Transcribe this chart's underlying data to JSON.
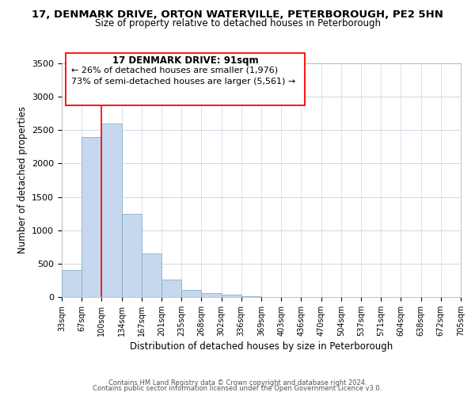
{
  "title": "17, DENMARK DRIVE, ORTON WATERVILLE, PETERBOROUGH, PE2 5HN",
  "subtitle": "Size of property relative to detached houses in Peterborough",
  "xlabel": "Distribution of detached houses by size in Peterborough",
  "ylabel": "Number of detached properties",
  "bar_values": [
    400,
    2400,
    2600,
    1250,
    650,
    260,
    110,
    55,
    30,
    10,
    2,
    1,
    0,
    0,
    0,
    0,
    0,
    0,
    0,
    0
  ],
  "x_labels": [
    "33sqm",
    "67sqm",
    "100sqm",
    "134sqm",
    "167sqm",
    "201sqm",
    "235sqm",
    "268sqm",
    "302sqm",
    "336sqm",
    "369sqm",
    "403sqm",
    "436sqm",
    "470sqm",
    "504sqm",
    "537sqm",
    "571sqm",
    "604sqm",
    "638sqm",
    "672sqm",
    "705sqm"
  ],
  "bar_color": "#c5d8ed",
  "bar_edge_color": "#8ab0cc",
  "red_line_x": 2,
  "ylim": [
    0,
    3500
  ],
  "yticks": [
    0,
    500,
    1000,
    1500,
    2000,
    2500,
    3000,
    3500
  ],
  "annotation_title": "17 DENMARK DRIVE: 91sqm",
  "annotation_line1": "← 26% of detached houses are smaller (1,976)",
  "annotation_line2": "73% of semi-detached houses are larger (5,561) →",
  "footer_line1": "Contains HM Land Registry data © Crown copyright and database right 2024.",
  "footer_line2": "Contains public sector information licensed under the Open Government Licence v3.0.",
  "background_color": "#ffffff",
  "grid_color": "#cdd8e8"
}
